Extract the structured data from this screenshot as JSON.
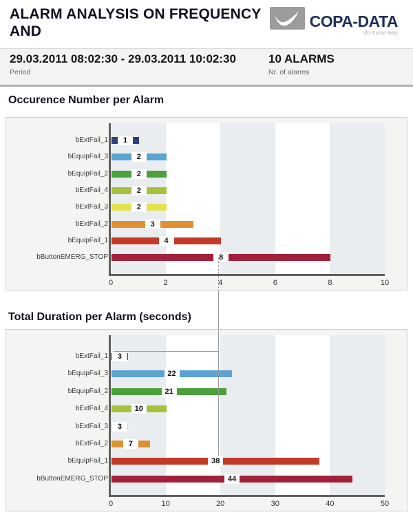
{
  "header": {
    "title": "ALARM ANALYSIS ON FREQUENCY AND",
    "logo": {
      "brand": "COPA-DATA",
      "tagline": "do it your way"
    }
  },
  "summary": {
    "period_value": "29.03.2011 08:02:30 - 29.03.2011 10:02:30",
    "period_label": "Period",
    "alarms_value": "10 ALARMS",
    "alarms_label": "Nr. of alarms"
  },
  "colors": {
    "brand_navy": "#203057",
    "logo_gray": "#9c9c9c",
    "band_gray": "#e9edf0",
    "band_white": "#ffffff",
    "axis_gray": "#5f5f5f",
    "panel_bg": "#f4f4f2"
  },
  "chart_data": [
    {
      "type": "bar",
      "orientation": "horizontal",
      "title": "Occurence Number per Alarm",
      "categories": [
        "bExtFail_1",
        "bEquipFail_3",
        "bEquipFail_2",
        "bExtFail_4",
        "bExtFail_3",
        "bExtFail_2",
        "bEquipFail_1",
        "bButtonEMERG_STOP"
      ],
      "values": [
        1,
        2,
        2,
        2,
        2,
        3,
        4,
        8
      ],
      "bar_colors": [
        "#2c3f7d",
        "#5ba3d0",
        "#4aa13c",
        "#a6c23d",
        "#e4e14e",
        "#df9030",
        "#c33b28",
        "#a02139"
      ],
      "xlim": [
        0,
        10
      ],
      "xticks": [
        0,
        2,
        4,
        6,
        8,
        10
      ],
      "value_labels": true,
      "plot_bands_alternating": true,
      "legend": "none"
    },
    {
      "type": "bar",
      "orientation": "horizontal",
      "title": "Total Duration per Alarm (seconds)",
      "categories": [
        "bExtFail_1",
        "bEquipFail_3",
        "bEquipFail_2",
        "bExtFail_4",
        "bExtFail_3",
        "bExtFail_2",
        "bEquipFail_1",
        "bButtonEMERG_STOP"
      ],
      "values": [
        3,
        22,
        21,
        10,
        3,
        7,
        38,
        44
      ],
      "bar_colors": [
        "#2c3f7d",
        "#5ba3d0",
        "#4aa13c",
        "#a6c23d",
        "#e4e14e",
        "#df9030",
        "#c33b28",
        "#a02139"
      ],
      "xlim": [
        0,
        50
      ],
      "xticks": [
        0,
        10,
        20,
        30,
        40,
        50
      ],
      "value_labels": true,
      "plot_bands_alternating": true,
      "legend": "none"
    }
  ]
}
